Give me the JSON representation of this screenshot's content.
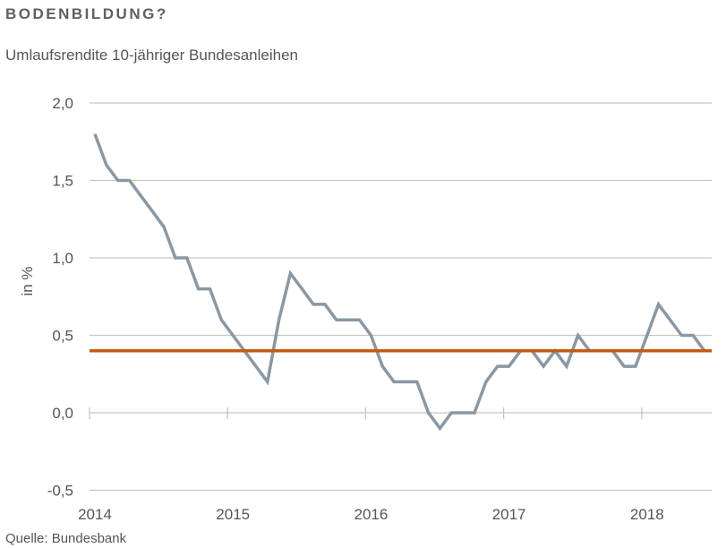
{
  "title": "BODENBILDUNG?",
  "subtitle": "Umlaufsrendite 10-jähriger Bundesanleihen",
  "source": "Quelle: Bundesbank",
  "chart_data": {
    "type": "line",
    "ylabel": "in %",
    "ylim": [
      -0.5,
      2.0
    ],
    "yticks": [
      2.0,
      1.5,
      1.0,
      0.5,
      0.0,
      -0.5
    ],
    "ytick_labels": [
      "2,0",
      "1,5",
      "1,0",
      "0,5",
      "0,0",
      "-0,5"
    ],
    "xticks": [
      "2014",
      "2015",
      "2016",
      "2017",
      "2018"
    ],
    "grid": true,
    "x_frequency": "monthly",
    "x_start": "2014-01",
    "series": [
      {
        "color": "#8a98a3",
        "values": [
          1.8,
          1.6,
          1.5,
          1.5,
          1.4,
          1.3,
          1.2,
          1.0,
          1.0,
          0.8,
          0.8,
          0.6,
          0.5,
          0.4,
          0.3,
          0.2,
          0.6,
          0.9,
          0.8,
          0.7,
          0.7,
          0.6,
          0.6,
          0.6,
          0.5,
          0.3,
          0.2,
          0.2,
          0.2,
          0.0,
          -0.1,
          0.0,
          0.0,
          0.0,
          0.2,
          0.3,
          0.3,
          0.4,
          0.4,
          0.3,
          0.4,
          0.3,
          0.5,
          0.4,
          0.4,
          0.4,
          0.3,
          0.3,
          0.5,
          0.7,
          0.6,
          0.5,
          0.5,
          0.4
        ]
      }
    ],
    "reference_line": {
      "value": 0.4,
      "color": "#c55a11"
    },
    "grid_color": "#c9c5bd"
  }
}
